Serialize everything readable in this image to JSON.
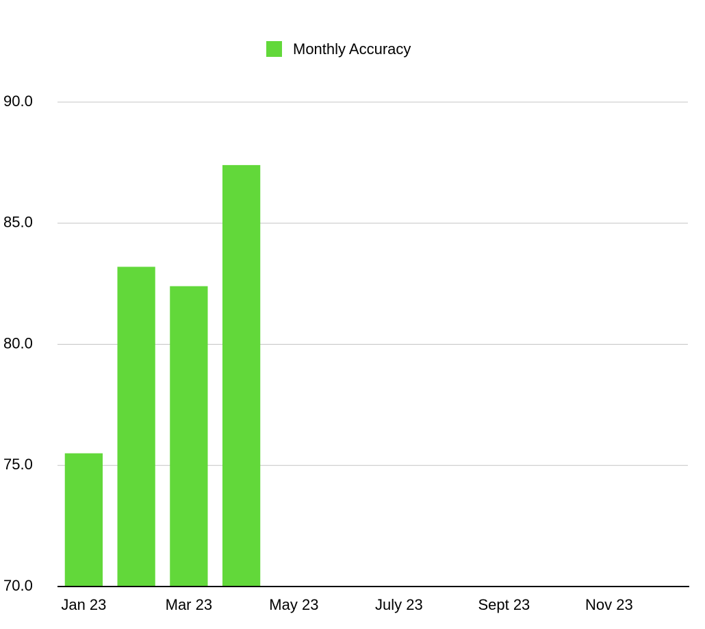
{
  "chart_data": {
    "type": "bar",
    "categories": [
      "Jan 23",
      null,
      "Mar 23",
      null,
      "May 23",
      null,
      "July 23",
      null,
      "Sept 23",
      null,
      "Nov 23",
      null
    ],
    "series": [
      {
        "name": "Monthly Accuracy",
        "color": "#62d83a",
        "values": [
          75.5,
          83.2,
          82.4,
          87.4,
          null,
          null,
          null,
          null,
          null,
          null,
          null,
          null
        ]
      }
    ],
    "ylim": [
      70,
      90
    ],
    "yticks": [
      {
        "value": 70,
        "label": "70.0"
      },
      {
        "value": 75,
        "label": "75.0"
      },
      {
        "value": 80,
        "label": "80.0"
      },
      {
        "value": 85,
        "label": "85.0"
      },
      {
        "value": 90,
        "label": "90.0"
      }
    ],
    "grid": true,
    "legend": "top"
  }
}
